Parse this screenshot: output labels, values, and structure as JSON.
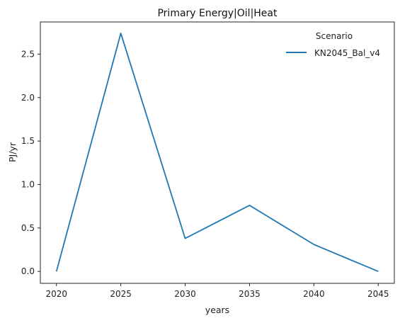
{
  "chart_data": {
    "type": "line",
    "title": "Primary Energy|Oil|Heat",
    "xlabel": "years",
    "ylabel": "PJ/yr",
    "x": [
      2020,
      2025,
      2030,
      2035,
      2040,
      2045
    ],
    "x_ticks": [
      2020,
      2025,
      2030,
      2035,
      2040,
      2045
    ],
    "y_ticks": [
      0.0,
      0.5,
      1.0,
      1.5,
      2.0,
      2.5
    ],
    "y_tick_labels": [
      "0.0",
      "0.5",
      "1.0",
      "1.5",
      "2.0",
      "2.5"
    ],
    "xlim": [
      2018.75,
      2046.25
    ],
    "ylim": [
      -0.137,
      2.87
    ],
    "grid": false,
    "legend": {
      "title": "Scenario",
      "placement": "top-right"
    },
    "series": [
      {
        "name": "KN2045_Bal_v4",
        "color": "#1f77b4",
        "values": [
          0.0,
          2.74,
          0.38,
          0.76,
          0.31,
          0.0
        ]
      }
    ]
  }
}
